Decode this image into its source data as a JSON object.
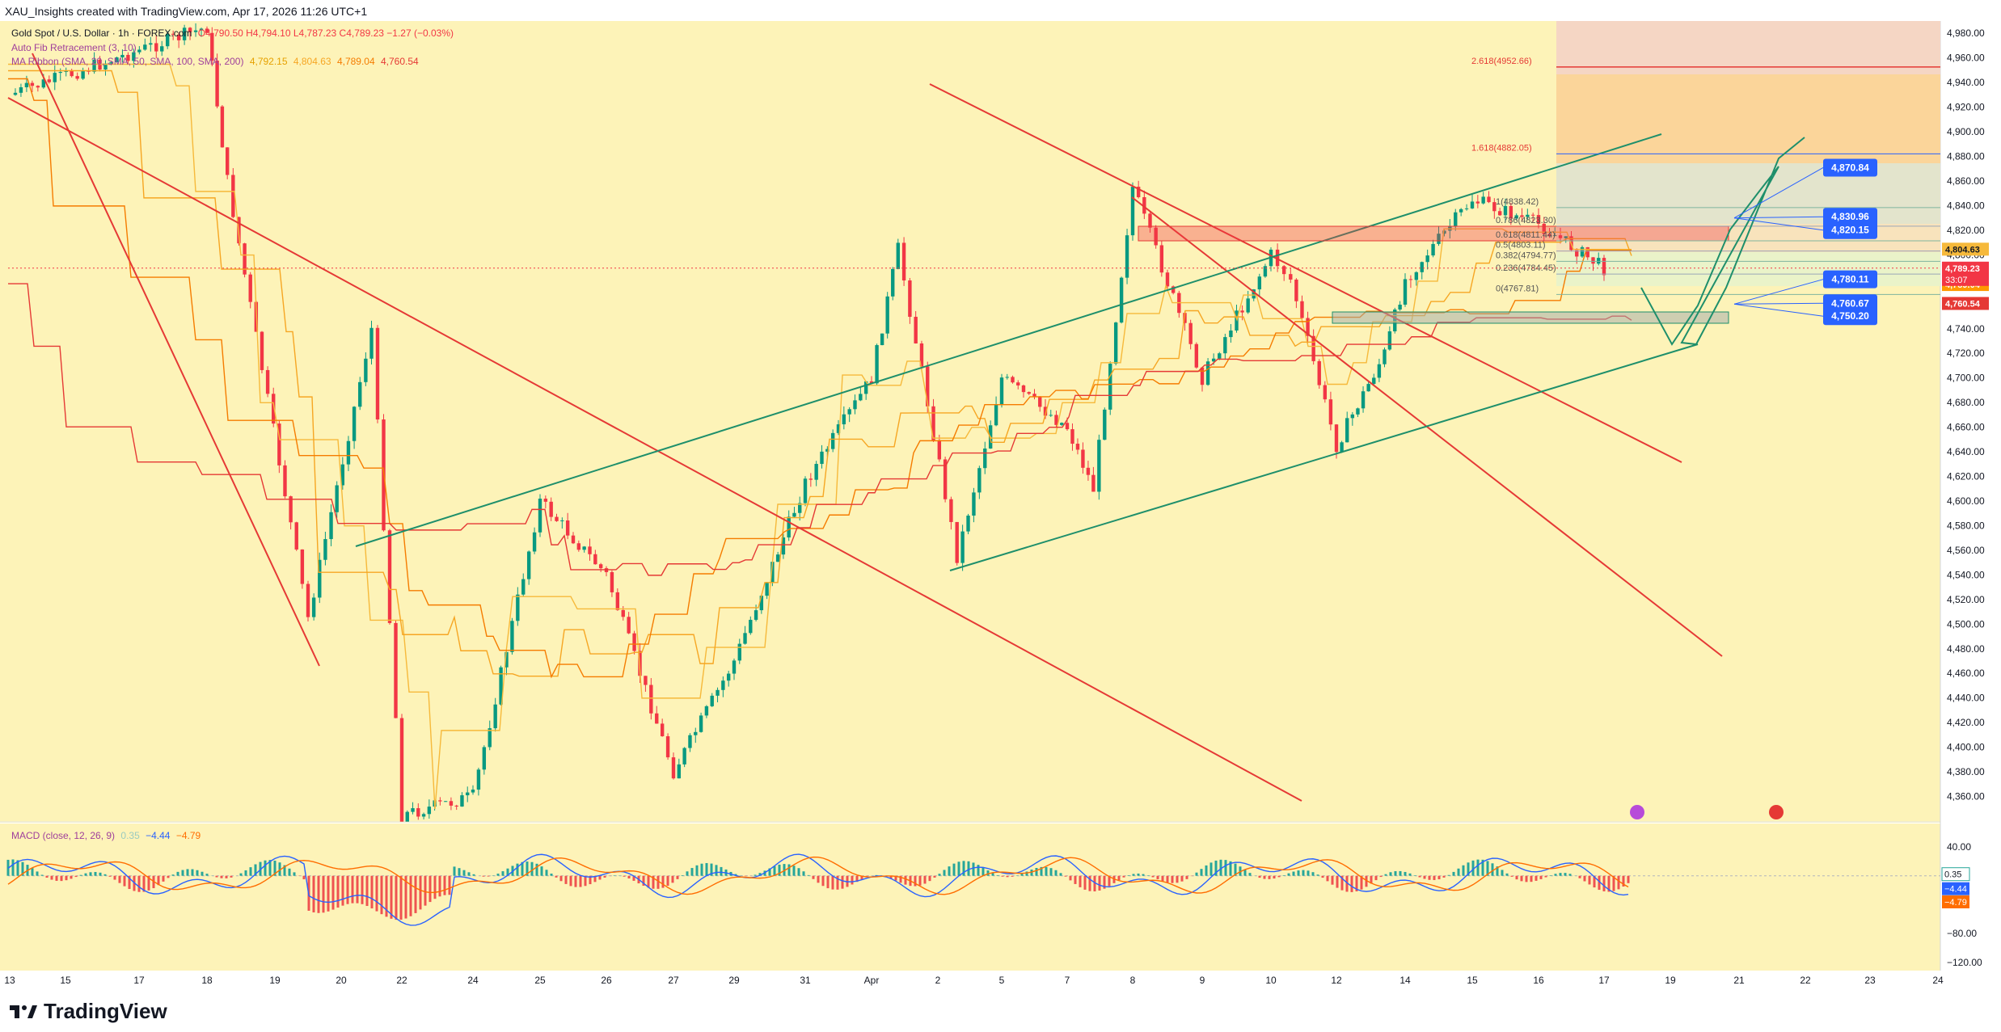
{
  "header": {
    "text": "XAU_Insights created with TradingView.com, Apr 17, 2026 11:26 UTC+1"
  },
  "legend": {
    "symbol": "Gold Spot / U.S. Dollar · 1h · FOREX.com",
    "ohlc": "O4,790.50 H4,794.10 L4,787.23 C4,789.23 −1.27 (−0.03%)",
    "fib": "Auto Fib Retracement (3, 10)",
    "ma_label": "MA Ribbon (SMA, 20, SMA, 50, SMA, 100, SMA, 200)",
    "ma_values": [
      "4,792.15",
      "4,804.63",
      "4,789.04",
      "4,760.54"
    ],
    "macd_label": "MACD (close, 12, 26, 9)",
    "macd_values": [
      "0.35",
      "−4.44",
      "−4.79"
    ]
  },
  "footer": {
    "logo_text": "TradingView"
  },
  "chart_data": {
    "type": "candlestick",
    "symbol": "XAUUSD",
    "timeframe": "1h",
    "ylim": [
      4340,
      4990
    ],
    "y_ticks": [
      "4,980.00",
      "4,960.00",
      "4,940.00",
      "4,920.00",
      "4,900.00",
      "4,880.00",
      "4,860.00",
      "4,840.00",
      "4,820.00",
      "4,800.00",
      "4,780.00",
      "4,760.00",
      "4,740.00",
      "4,720.00",
      "4,700.00",
      "4,680.00",
      "4,660.00",
      "4,640.00",
      "4,620.00",
      "4,600.00",
      "4,580.00",
      "4,560.00",
      "4,540.00",
      "4,520.00",
      "4,500.00",
      "4,480.00",
      "4,460.00",
      "4,440.00",
      "4,420.00",
      "4,400.00",
      "4,380.00",
      "4,360.00"
    ],
    "x_ticks": [
      "13",
      "15",
      "17",
      "18",
      "19",
      "20",
      "22",
      "24",
      "25",
      "26",
      "27",
      "29",
      "31",
      "Apr",
      "2",
      "5",
      "7",
      "8",
      "9",
      "10",
      "12",
      "14",
      "15",
      "16",
      "17",
      "19",
      "21",
      "22",
      "23",
      "24"
    ],
    "key_closes": [
      {
        "x": "13",
        "y": 4930
      },
      {
        "x": "18",
        "y": 4985
      },
      {
        "x": "18.5",
        "y": 4860
      },
      {
        "x": "19.5",
        "y": 4505
      },
      {
        "x": "20.5",
        "y": 4740
      },
      {
        "x": "22",
        "y": 4345
      },
      {
        "x": "24",
        "y": 4360
      },
      {
        "x": "25",
        "y": 4600
      },
      {
        "x": "26",
        "y": 4540
      },
      {
        "x": "27",
        "y": 4380
      },
      {
        "x": "29",
        "y": 4470
      },
      {
        "x": "31",
        "y": 4615
      },
      {
        "x": "Apr",
        "y": 4700
      },
      {
        "x": "1.5",
        "y": 4805
      },
      {
        "x": "2.3",
        "y": 4555
      },
      {
        "x": "5",
        "y": 4700
      },
      {
        "x": "7",
        "y": 4660
      },
      {
        "x": "7.6",
        "y": 4610
      },
      {
        "x": "8",
        "y": 4855
      },
      {
        "x": "9",
        "y": 4700
      },
      {
        "x": "10",
        "y": 4800
      },
      {
        "x": "11",
        "y": 4780
      },
      {
        "x": "12",
        "y": 4645
      },
      {
        "x": "13",
        "y": 4720
      },
      {
        "x": "14",
        "y": 4780
      },
      {
        "x": "15",
        "y": 4845
      },
      {
        "x": "16",
        "y": 4825
      },
      {
        "x": "17",
        "y": 4789.23
      }
    ],
    "current_price": "4,789.23",
    "countdown": "33:07",
    "fib_levels": [
      {
        "label": "2.618(4952.66)",
        "value": 4952.66
      },
      {
        "label": "1.618(4882.05)",
        "value": 4882.05
      },
      {
        "label": "1(4838.42)",
        "value": 4838.42
      },
      {
        "label": "0.786(4823.30)",
        "value": 4823.3
      },
      {
        "label": "0.618(4811.44)",
        "value": 4811.44
      },
      {
        "label": "0.5(4803.11)",
        "value": 4803.11
      },
      {
        "label": "0.382(4794.77)",
        "value": 4794.77
      },
      {
        "label": "0.236(4784.45)",
        "value": 4784.45
      },
      {
        "label": "0(4767.81)",
        "value": 4767.81
      }
    ],
    "price_labels": [
      {
        "text": "4,870.84",
        "value": 4870.84
      },
      {
        "text": "4,830.96",
        "value": 4830.96
      },
      {
        "text": "4,820.15",
        "value": 4820.15
      },
      {
        "text": "4,780.11",
        "value": 4780.11
      },
      {
        "text": "4,760.67",
        "value": 4760.67
      },
      {
        "text": "4,750.20",
        "value": 4750.2
      }
    ],
    "axis_tags": [
      {
        "text": "4,804.63",
        "value": 4804.63,
        "color": "#f6b93b"
      },
      {
        "text": "4,792.15",
        "value": 4792.15,
        "color": "#fbd13f"
      },
      {
        "text": "4,789.23",
        "value": 4789.23,
        "color": "#f23645"
      },
      {
        "text": "4,789.04",
        "value": 4789.04,
        "color": "#ff9800"
      },
      {
        "text": "4,760.54",
        "value": 4760.54,
        "color": "#e53935"
      }
    ],
    "macd": {
      "y_ticks": [
        "40.00",
        "0.00",
        "−80.00",
        "−120.00"
      ],
      "tags": [
        {
          "text": "0.35",
          "color": "#ffffff"
        },
        {
          "text": "−4.44",
          "color": "#2962ff"
        },
        {
          "text": "−4.79",
          "color": "#ff6d00"
        }
      ]
    },
    "colors": {
      "up": "#089981",
      "down": "#f23645",
      "bg": "#fdf3b8",
      "resistance": "#e53935",
      "channel": "#1e8f6b"
    }
  }
}
